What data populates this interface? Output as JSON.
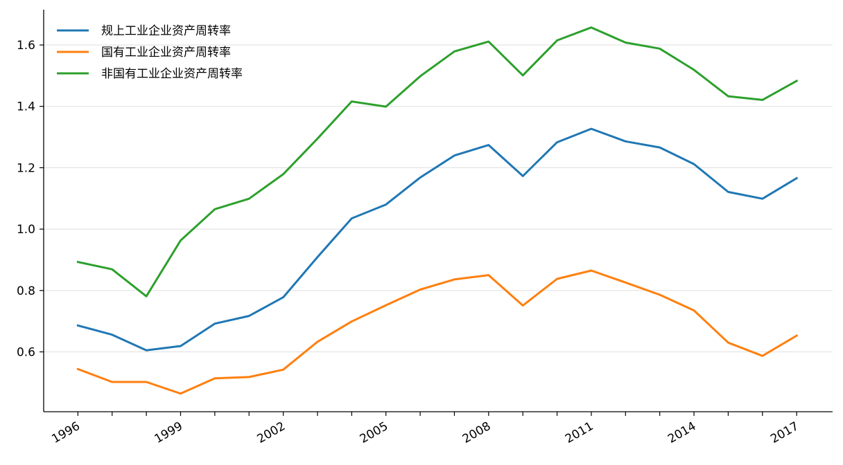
{
  "chart_data": {
    "type": "line",
    "title": "",
    "xlabel": "",
    "ylabel": "",
    "x": [
      1996,
      1997,
      1998,
      1999,
      2000,
      2001,
      2002,
      2003,
      2004,
      2005,
      2006,
      2007,
      2008,
      2009,
      2010,
      2011,
      2012,
      2013,
      2014,
      2015,
      2016,
      2017
    ],
    "x_tick_labels": [
      "1996",
      "1999",
      "2002",
      "2005",
      "2008",
      "2011",
      "2014",
      "2017"
    ],
    "y_tick_labels": [
      "0.6",
      "0.8",
      "1.0",
      "1.2",
      "1.4",
      "1.6"
    ],
    "ylim": [
      0.405,
      1.715
    ],
    "xlim": [
      1995,
      2018.05
    ],
    "grid": "horizontal",
    "legend_position": "top-left",
    "series": [
      {
        "name": "规上工业企业资产周转率",
        "color": "#1f77b4",
        "values": [
          0.686,
          0.656,
          0.605,
          0.619,
          0.692,
          0.717,
          0.778,
          0.909,
          1.035,
          1.08,
          1.168,
          1.24,
          1.274,
          1.173,
          1.283,
          1.327,
          1.286,
          1.266,
          1.212,
          1.121,
          1.099,
          1.166
        ]
      },
      {
        "name": "国有工业企业资产周转率",
        "color": "#ff7f0e",
        "values": [
          0.544,
          0.502,
          0.502,
          0.464,
          0.514,
          0.518,
          0.542,
          0.633,
          0.699,
          0.752,
          0.803,
          0.836,
          0.85,
          0.751,
          0.838,
          0.865,
          0.826,
          0.786,
          0.735,
          0.63,
          0.587,
          0.653
        ]
      },
      {
        "name": "非国有工业企业资产周转率",
        "color": "#2ca02c",
        "values": [
          0.893,
          0.869,
          0.781,
          0.963,
          1.065,
          1.099,
          1.179,
          1.295,
          1.416,
          1.399,
          1.498,
          1.579,
          1.611,
          1.501,
          1.615,
          1.657,
          1.608,
          1.588,
          1.519,
          1.433,
          1.421,
          1.483
        ]
      }
    ]
  }
}
